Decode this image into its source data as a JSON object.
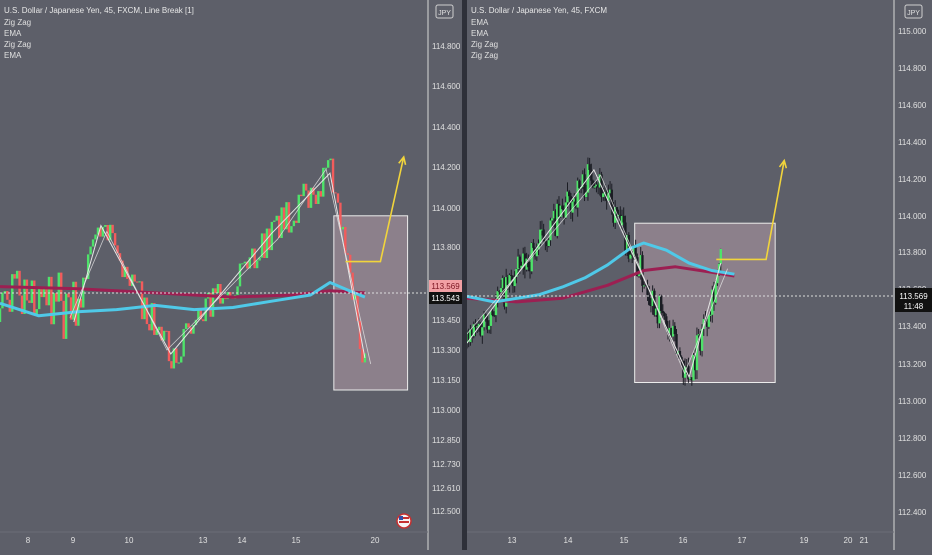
{
  "panels": [
    {
      "title": "U.S. Dollar / Japanese Yen, 45, FXCM, Line Break [1]",
      "indicators": [
        "Zig Zag",
        "EMA",
        "Zig Zag",
        "EMA"
      ],
      "currency_badge": "JPY",
      "last_price_label": "113.569",
      "crosshair_price_label": "113.543",
      "flag_icon": "us-flag-icon"
    },
    {
      "title": "U.S. Dollar / Japanese Yen, 45, FXCM",
      "indicators": [
        "EMA",
        "EMA",
        "Zig Zag",
        "Zig Zag"
      ],
      "currency_badge": "JPY",
      "price_label": "113.569",
      "countdown_label": "11:48"
    }
  ],
  "colors": {
    "background": "#5d5f69",
    "bull": "#4ee36a",
    "bear": "#f25c5c",
    "ema_fast": "#4fc9e8",
    "ema_slow": "#9c1f52",
    "zigzag": "#e6e6e6",
    "arrow": "#f1d43c",
    "box_fill": "#b39aa8",
    "box_stroke": "#ececec",
    "price_tag_last": "#f2a0a4",
    "price_tag_cross": "#111111"
  },
  "chart_data": [
    {
      "type": "line",
      "title": "U.S. Dollar / Japanese Yen, 45, FXCM, Line Break [1]",
      "x_ticks": [
        "8",
        "9",
        "10",
        "13",
        "14",
        "15",
        "20"
      ],
      "y_ticks": [
        "114.800",
        "114.600",
        "114.400",
        "114.200",
        "114.000",
        "113.800",
        "113.450",
        "113.300",
        "113.150",
        "113.000",
        "112.850",
        "112.730",
        "112.610",
        "112.500"
      ],
      "zigzag": [
        {
          "x": 1.9,
          "y": 113.44
        },
        {
          "x": 2.6,
          "y": 113.91
        },
        {
          "x": 4.4,
          "y": 113.28
        },
        {
          "x": 7.0,
          "y": 113.87
        },
        {
          "x": 8.5,
          "y": 114.17
        },
        {
          "x": 9.4,
          "y": 113.26
        }
      ],
      "ema_fast": [
        {
          "x": 0.0,
          "y": 113.53
        },
        {
          "x": 1.0,
          "y": 113.47
        },
        {
          "x": 2.0,
          "y": 113.49
        },
        {
          "x": 3.0,
          "y": 113.5
        },
        {
          "x": 4.0,
          "y": 113.52
        },
        {
          "x": 5.0,
          "y": 113.5
        },
        {
          "x": 6.0,
          "y": 113.51
        },
        {
          "x": 7.0,
          "y": 113.54
        },
        {
          "x": 8.0,
          "y": 113.57
        },
        {
          "x": 8.5,
          "y": 113.63
        },
        {
          "x": 9.0,
          "y": 113.59
        },
        {
          "x": 9.4,
          "y": 113.56
        }
      ],
      "ema_slow": [
        {
          "x": 0.0,
          "y": 113.61
        },
        {
          "x": 2.0,
          "y": 113.6
        },
        {
          "x": 4.0,
          "y": 113.58
        },
        {
          "x": 6.0,
          "y": 113.56
        },
        {
          "x": 7.5,
          "y": 113.57
        },
        {
          "x": 8.5,
          "y": 113.59
        },
        {
          "x": 9.4,
          "y": 113.58
        }
      ],
      "annotation_box": {
        "x_from": 8.6,
        "x_to": 10.5,
        "y_from": 113.1,
        "y_to": 113.96
      },
      "forecast_arrow": [
        {
          "x": 8.9,
          "y": 113.73
        },
        {
          "x": 9.8,
          "y": 113.73
        },
        {
          "x": 10.4,
          "y": 114.25
        }
      ]
    },
    {
      "type": "line",
      "title": "U.S. Dollar / Japanese Yen, 45, FXCM",
      "x_ticks": [
        "13",
        "14",
        "15",
        "16",
        "17",
        "19",
        "20",
        "21"
      ],
      "y_ticks": [
        "115.000",
        "114.800",
        "114.600",
        "114.400",
        "114.200",
        "114.000",
        "113.800",
        "113.600",
        "113.400",
        "113.200",
        "113.000",
        "112.800",
        "112.600",
        "112.400"
      ],
      "zigzag": [
        {
          "x": 12.4,
          "y": 113.31
        },
        {
          "x": 15.2,
          "y": 114.25
        },
        {
          "x": 17.3,
          "y": 113.13
        },
        {
          "x": 18.0,
          "y": 113.74
        }
      ],
      "ema_fast": [
        {
          "x": 12.4,
          "y": 113.56
        },
        {
          "x": 13.0,
          "y": 113.53
        },
        {
          "x": 13.5,
          "y": 113.55
        },
        {
          "x": 14.0,
          "y": 113.57
        },
        {
          "x": 14.5,
          "y": 113.61
        },
        {
          "x": 15.0,
          "y": 113.66
        },
        {
          "x": 15.5,
          "y": 113.73
        },
        {
          "x": 16.0,
          "y": 113.82
        },
        {
          "x": 16.3,
          "y": 113.85
        },
        {
          "x": 16.8,
          "y": 113.81
        },
        {
          "x": 17.3,
          "y": 113.74
        },
        {
          "x": 17.8,
          "y": 113.7
        },
        {
          "x": 18.3,
          "y": 113.68
        }
      ],
      "ema_slow": [
        {
          "x": 12.4,
          "y": 113.55
        },
        {
          "x": 13.5,
          "y": 113.53
        },
        {
          "x": 14.5,
          "y": 113.55
        },
        {
          "x": 15.5,
          "y": 113.62
        },
        {
          "x": 16.3,
          "y": 113.7
        },
        {
          "x": 17.0,
          "y": 113.72
        },
        {
          "x": 17.8,
          "y": 113.69
        },
        {
          "x": 18.3,
          "y": 113.67
        }
      ],
      "annotation_box": {
        "x_from": 16.1,
        "x_to": 19.2,
        "y_from": 113.1,
        "y_to": 113.96
      },
      "forecast_arrow": [
        {
          "x": 17.9,
          "y": 113.76
        },
        {
          "x": 19.0,
          "y": 113.76
        },
        {
          "x": 19.4,
          "y": 114.3
        }
      ]
    }
  ]
}
